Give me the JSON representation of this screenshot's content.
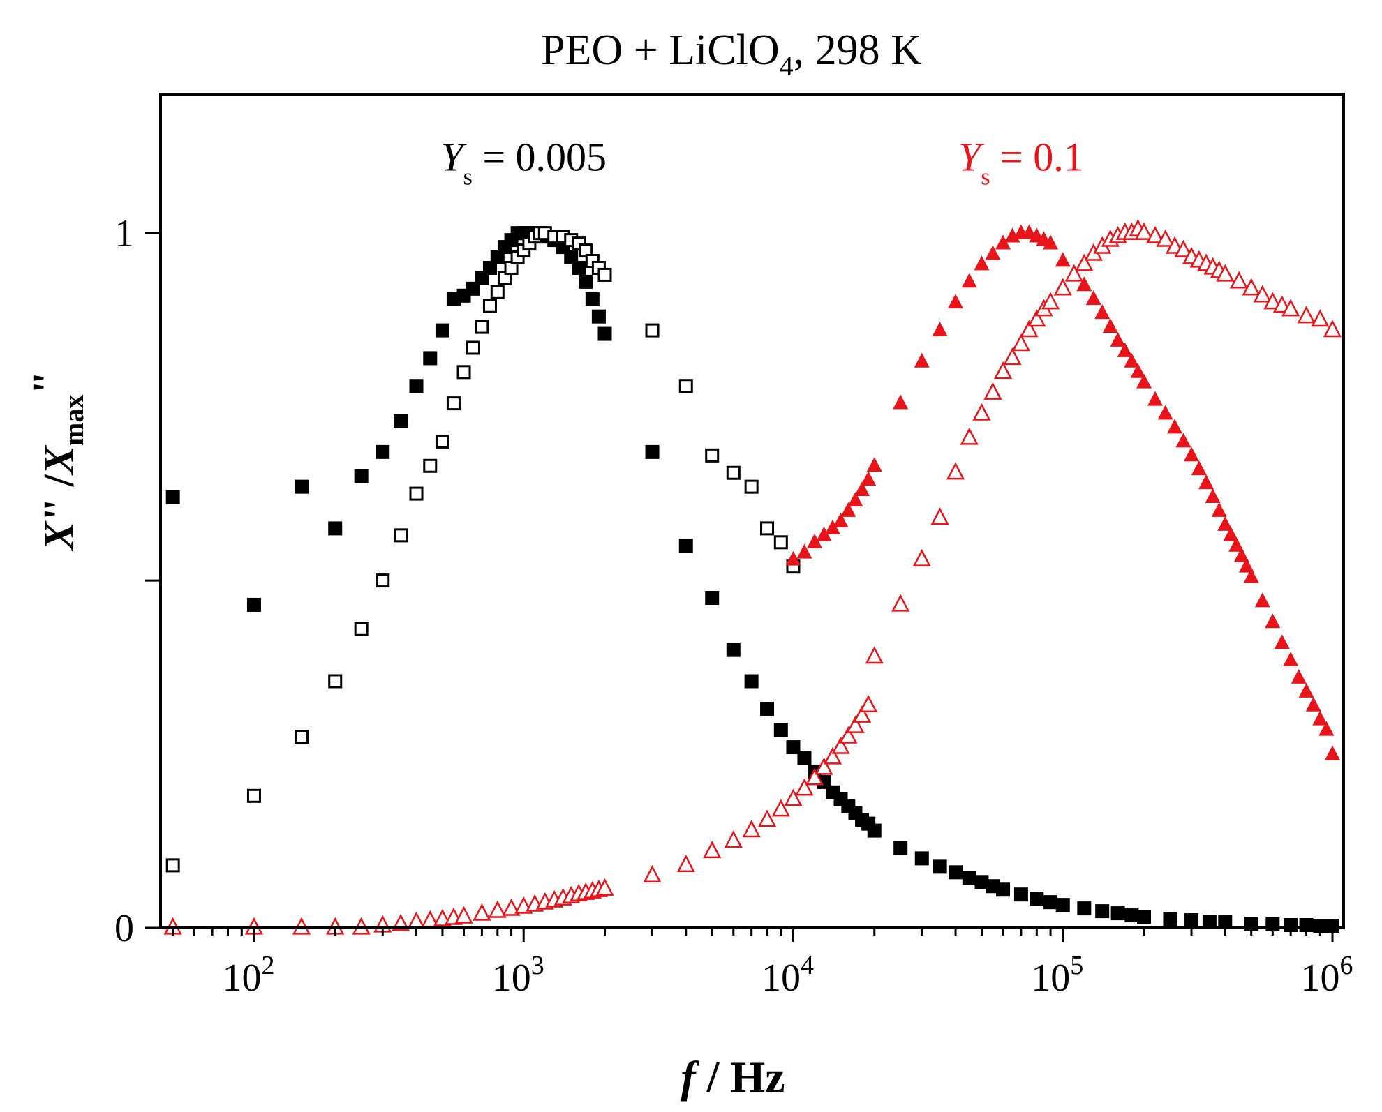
{
  "chart_data": {
    "type": "scatter",
    "title_main": "PEO + LiClO",
    "title_sub": "4",
    "title_tail": ", 298 K",
    "xlabel_var": "f",
    "xlabel_unit": " / Hz",
    "ylabel_var1": "X",
    "ylabel_quote1": "\"",
    "ylabel_slash": " /",
    "ylabel_var2": "X",
    "ylabel_sub": "max",
    "ylabel_quote2": "\"",
    "x_scale": "log",
    "xlim": [
      45,
      1100000
    ],
    "ylim": [
      0,
      1.2
    ],
    "x_ticks": [
      {
        "value": 100,
        "base": "10",
        "exp": "2"
      },
      {
        "value": 1000,
        "base": "10",
        "exp": "3"
      },
      {
        "value": 10000,
        "base": "10",
        "exp": "4"
      },
      {
        "value": 100000,
        "base": "10",
        "exp": "5"
      },
      {
        "value": 1000000,
        "base": "10",
        "exp": "6"
      }
    ],
    "y_ticks": [
      {
        "value": 0,
        "label": "0"
      },
      {
        "value": 0.5,
        "label": ""
      },
      {
        "value": 1,
        "label": "1"
      }
    ],
    "annotations": [
      {
        "var": "Y",
        "sub": "s",
        "text": " = 0.005",
        "color": "#000000",
        "x": 1000,
        "y": 1.11
      },
      {
        "var": "Y",
        "sub": "s",
        "text": " = 0.1",
        "color": "#e8141a",
        "x": 70000,
        "y": 1.11
      }
    ],
    "series": [
      {
        "name": "Ys = 0.005 filled",
        "marker": "square",
        "filled": true,
        "color": "#000000",
        "points": [
          [
            50,
            0.62
          ],
          [
            100,
            0.465
          ],
          [
            150,
            0.635
          ],
          [
            200,
            0.575
          ],
          [
            250,
            0.65
          ],
          [
            300,
            0.685
          ],
          [
            350,
            0.73
          ],
          [
            400,
            0.78
          ],
          [
            450,
            0.82
          ],
          [
            500,
            0.86
          ],
          [
            550,
            0.905
          ],
          [
            600,
            0.91
          ],
          [
            650,
            0.92
          ],
          [
            700,
            0.935
          ],
          [
            750,
            0.95
          ],
          [
            800,
            0.965
          ],
          [
            850,
            0.98
          ],
          [
            900,
            0.99
          ],
          [
            950,
            1.0
          ],
          [
            1000,
            1.0
          ],
          [
            1050,
            1.0
          ],
          [
            1100,
            1.0
          ],
          [
            1150,
            1.0
          ],
          [
            1200,
            0.995
          ],
          [
            1300,
            0.99
          ],
          [
            1400,
            0.98
          ],
          [
            1500,
            0.965
          ],
          [
            1600,
            0.95
          ],
          [
            1700,
            0.93
          ],
          [
            1800,
            0.905
          ],
          [
            1900,
            0.88
          ],
          [
            2000,
            0.855
          ],
          [
            3000,
            0.685
          ],
          [
            4000,
            0.55
          ],
          [
            5000,
            0.475
          ],
          [
            6000,
            0.4
          ],
          [
            7000,
            0.355
          ],
          [
            8000,
            0.315
          ],
          [
            9000,
            0.285
          ],
          [
            10000,
            0.26
          ],
          [
            11000,
            0.245
          ],
          [
            12000,
            0.225
          ],
          [
            13000,
            0.21
          ],
          [
            14000,
            0.195
          ],
          [
            15000,
            0.185
          ],
          [
            16000,
            0.175
          ],
          [
            17000,
            0.165
          ],
          [
            18000,
            0.155
          ],
          [
            19000,
            0.15
          ],
          [
            20000,
            0.14
          ],
          [
            25000,
            0.115
          ],
          [
            30000,
            0.1
          ],
          [
            35000,
            0.088
          ],
          [
            40000,
            0.08
          ],
          [
            45000,
            0.072
          ],
          [
            50000,
            0.066
          ],
          [
            55000,
            0.06
          ],
          [
            60000,
            0.055
          ],
          [
            70000,
            0.048
          ],
          [
            80000,
            0.042
          ],
          [
            90000,
            0.037
          ],
          [
            100000,
            0.033
          ],
          [
            120000,
            0.028
          ],
          [
            140000,
            0.024
          ],
          [
            160000,
            0.021
          ],
          [
            180000,
            0.018
          ],
          [
            200000,
            0.016
          ],
          [
            250000,
            0.013
          ],
          [
            300000,
            0.011
          ],
          [
            350000,
            0.009
          ],
          [
            400000,
            0.008
          ],
          [
            500000,
            0.006
          ],
          [
            600000,
            0.005
          ],
          [
            700000,
            0.004
          ],
          [
            800000,
            0.004
          ],
          [
            900000,
            0.003
          ],
          [
            1000000,
            0.003
          ]
        ]
      },
      {
        "name": "Ys = 0.005 open",
        "marker": "square",
        "filled": false,
        "color": "#000000",
        "points": [
          [
            50,
            0.09
          ],
          [
            100,
            0.19
          ],
          [
            150,
            0.275
          ],
          [
            200,
            0.355
          ],
          [
            250,
            0.43
          ],
          [
            300,
            0.5
          ],
          [
            350,
            0.565
          ],
          [
            400,
            0.625
          ],
          [
            450,
            0.665
          ],
          [
            500,
            0.7
          ],
          [
            550,
            0.755
          ],
          [
            600,
            0.8
          ],
          [
            650,
            0.835
          ],
          [
            700,
            0.865
          ],
          [
            750,
            0.895
          ],
          [
            800,
            0.915
          ],
          [
            850,
            0.935
          ],
          [
            900,
            0.95
          ],
          [
            950,
            0.965
          ],
          [
            1000,
            0.975
          ],
          [
            1050,
            0.985
          ],
          [
            1100,
            0.995
          ],
          [
            1150,
            1.0
          ],
          [
            1200,
            1.0
          ],
          [
            1300,
            0.995
          ],
          [
            1400,
            0.995
          ],
          [
            1500,
            0.99
          ],
          [
            1600,
            0.985
          ],
          [
            1700,
            0.975
          ],
          [
            1800,
            0.96
          ],
          [
            1900,
            0.95
          ],
          [
            2000,
            0.94
          ],
          [
            3000,
            0.86
          ],
          [
            4000,
            0.78
          ],
          [
            5000,
            0.68
          ],
          [
            6000,
            0.655
          ],
          [
            7000,
            0.635
          ],
          [
            8000,
            0.575
          ],
          [
            9000,
            0.555
          ],
          [
            10000,
            0.52
          ]
        ]
      },
      {
        "name": "Ys = 0.1 filled",
        "marker": "triangle",
        "filled": true,
        "color": "#e8141a",
        "points": [
          [
            10000,
            0.53
          ],
          [
            11000,
            0.54
          ],
          [
            12000,
            0.555
          ],
          [
            13000,
            0.565
          ],
          [
            14000,
            0.575
          ],
          [
            15000,
            0.585
          ],
          [
            16000,
            0.6
          ],
          [
            17000,
            0.615
          ],
          [
            18000,
            0.63
          ],
          [
            19000,
            0.645
          ],
          [
            20000,
            0.665
          ],
          [
            25000,
            0.755
          ],
          [
            30000,
            0.815
          ],
          [
            35000,
            0.86
          ],
          [
            40000,
            0.9
          ],
          [
            45000,
            0.93
          ],
          [
            50000,
            0.955
          ],
          [
            55000,
            0.97
          ],
          [
            60000,
            0.985
          ],
          [
            65000,
            0.995
          ],
          [
            70000,
            1.0
          ],
          [
            75000,
            1.0
          ],
          [
            80000,
            0.995
          ],
          [
            85000,
            0.99
          ],
          [
            90000,
            0.985
          ],
          [
            100000,
            0.96
          ],
          [
            110000,
            0.94
          ],
          [
            120000,
            0.925
          ],
          [
            130000,
            0.905
          ],
          [
            140000,
            0.885
          ],
          [
            150000,
            0.865
          ],
          [
            160000,
            0.845
          ],
          [
            170000,
            0.83
          ],
          [
            180000,
            0.815
          ],
          [
            190000,
            0.8
          ],
          [
            200000,
            0.785
          ],
          [
            220000,
            0.76
          ],
          [
            240000,
            0.74
          ],
          [
            260000,
            0.72
          ],
          [
            280000,
            0.7
          ],
          [
            300000,
            0.68
          ],
          [
            320000,
            0.66
          ],
          [
            340000,
            0.64
          ],
          [
            360000,
            0.62
          ],
          [
            380000,
            0.6
          ],
          [
            400000,
            0.58
          ],
          [
            420000,
            0.565
          ],
          [
            440000,
            0.55
          ],
          [
            460000,
            0.535
          ],
          [
            480000,
            0.52
          ],
          [
            500000,
            0.505
          ],
          [
            550000,
            0.47
          ],
          [
            600000,
            0.44
          ],
          [
            650000,
            0.41
          ],
          [
            700000,
            0.385
          ],
          [
            750000,
            0.36
          ],
          [
            800000,
            0.34
          ],
          [
            850000,
            0.32
          ],
          [
            900000,
            0.3
          ],
          [
            950000,
            0.285
          ],
          [
            1000000,
            0.25
          ]
        ]
      },
      {
        "name": "Ys = 0.1 open",
        "marker": "triangle",
        "filled": false,
        "color": "#e8141a",
        "points": [
          [
            50,
            0.0
          ],
          [
            100,
            0.0
          ],
          [
            150,
            0.0
          ],
          [
            200,
            0.0
          ],
          [
            250,
            0.0
          ],
          [
            300,
            0.003
          ],
          [
            350,
            0.005
          ],
          [
            400,
            0.008
          ],
          [
            450,
            0.01
          ],
          [
            500,
            0.012
          ],
          [
            550,
            0.014
          ],
          [
            600,
            0.016
          ],
          [
            700,
            0.02
          ],
          [
            800,
            0.024
          ],
          [
            900,
            0.027
          ],
          [
            1000,
            0.03
          ],
          [
            1100,
            0.033
          ],
          [
            1200,
            0.036
          ],
          [
            1300,
            0.039
          ],
          [
            1400,
            0.042
          ],
          [
            1500,
            0.045
          ],
          [
            1600,
            0.048
          ],
          [
            1700,
            0.05
          ],
          [
            1800,
            0.052
          ],
          [
            1900,
            0.054
          ],
          [
            2000,
            0.056
          ],
          [
            3000,
            0.075
          ],
          [
            4000,
            0.09
          ],
          [
            5000,
            0.11
          ],
          [
            6000,
            0.125
          ],
          [
            7000,
            0.14
          ],
          [
            8000,
            0.155
          ],
          [
            9000,
            0.17
          ],
          [
            10000,
            0.185
          ],
          [
            11000,
            0.2
          ],
          [
            12000,
            0.215
          ],
          [
            13000,
            0.23
          ],
          [
            14000,
            0.245
          ],
          [
            15000,
            0.26
          ],
          [
            16000,
            0.275
          ],
          [
            17000,
            0.29
          ],
          [
            18000,
            0.305
          ],
          [
            19000,
            0.32
          ],
          [
            20000,
            0.39
          ],
          [
            25000,
            0.465
          ],
          [
            30000,
            0.53
          ],
          [
            35000,
            0.59
          ],
          [
            40000,
            0.655
          ],
          [
            45000,
            0.705
          ],
          [
            50000,
            0.74
          ],
          [
            55000,
            0.77
          ],
          [
            60000,
            0.8
          ],
          [
            65000,
            0.82
          ],
          [
            70000,
            0.84
          ],
          [
            75000,
            0.86
          ],
          [
            80000,
            0.875
          ],
          [
            85000,
            0.89
          ],
          [
            90000,
            0.9
          ],
          [
            100000,
            0.92
          ],
          [
            110000,
            0.94
          ],
          [
            120000,
            0.955
          ],
          [
            130000,
            0.97
          ],
          [
            140000,
            0.98
          ],
          [
            150000,
            0.99
          ],
          [
            160000,
            0.995
          ],
          [
            170000,
            1.0
          ],
          [
            180000,
            1.0
          ],
          [
            190000,
            1.005
          ],
          [
            200000,
            1.0
          ],
          [
            220000,
            0.995
          ],
          [
            240000,
            0.99
          ],
          [
            260000,
            0.98
          ],
          [
            280000,
            0.975
          ],
          [
            300000,
            0.965
          ],
          [
            320000,
            0.96
          ],
          [
            340000,
            0.955
          ],
          [
            360000,
            0.95
          ],
          [
            380000,
            0.945
          ],
          [
            400000,
            0.94
          ],
          [
            450000,
            0.93
          ],
          [
            500000,
            0.92
          ],
          [
            550000,
            0.91
          ],
          [
            600000,
            0.9
          ],
          [
            650000,
            0.895
          ],
          [
            700000,
            0.89
          ],
          [
            800000,
            0.88
          ],
          [
            900000,
            0.875
          ],
          [
            1000000,
            0.86
          ]
        ]
      }
    ]
  }
}
